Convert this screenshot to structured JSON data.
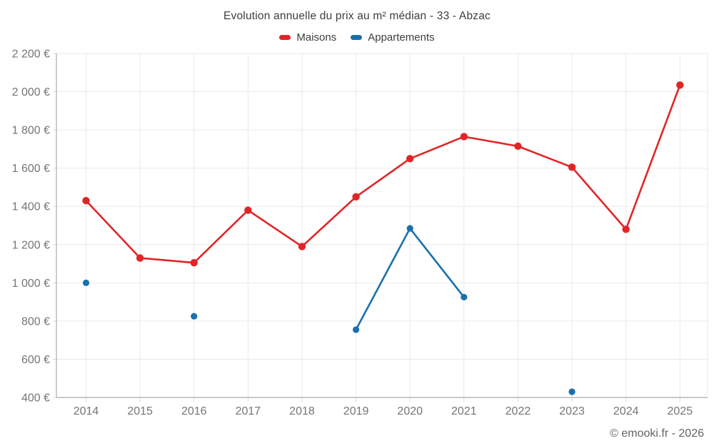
{
  "chart_data": {
    "type": "line",
    "title": "Evolution annuelle du prix au m² médian - 33 - Abzac",
    "footer": "© emooki.fr - 2026",
    "categories": [
      "2014",
      "2015",
      "2016",
      "2017",
      "2018",
      "2019",
      "2020",
      "2021",
      "2022",
      "2023",
      "2024",
      "2025"
    ],
    "series": [
      {
        "name": "Maisons",
        "color": "#e12527",
        "values": [
          1430,
          1130,
          1105,
          1380,
          1190,
          1450,
          1650,
          1765,
          1715,
          1605,
          1280,
          2035
        ]
      },
      {
        "name": "Appartements",
        "color": "#1a70ad",
        "values": [
          1000,
          null,
          825,
          null,
          null,
          755,
          1285,
          925,
          null,
          430,
          null,
          null
        ]
      }
    ],
    "ylim": [
      400,
      2200
    ],
    "yticks": {
      "values": [
        400,
        600,
        800,
        1000,
        1200,
        1400,
        1600,
        1800,
        2000,
        2200
      ],
      "labels": [
        "400 €",
        "600 €",
        "800 €",
        "1 000 €",
        "1 200 €",
        "1 400 €",
        "1 600 €",
        "1 800 €",
        "2 000 €",
        "2 200 €"
      ]
    },
    "grid": true,
    "legend_position": "top",
    "colors": {
      "gridline": "#eaeaea",
      "axis": "#ababab",
      "tick_text": "#757575",
      "title_text": "#3d3d3d",
      "footer_text": "#646464",
      "background": "#ffffff"
    }
  }
}
